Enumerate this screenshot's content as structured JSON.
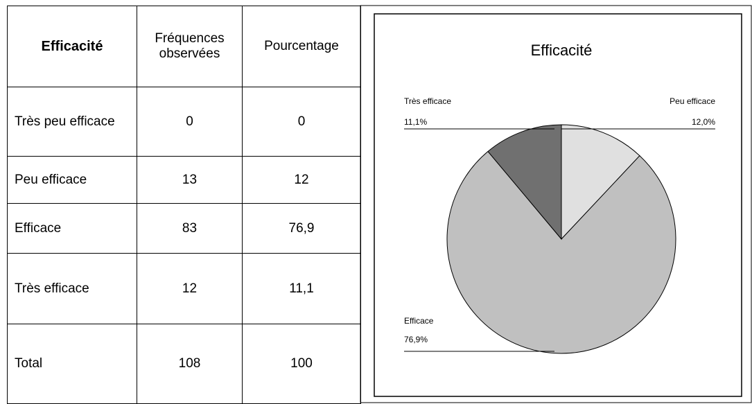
{
  "table": {
    "headers": [
      "Efficacité",
      "Fréquences observées",
      "Pourcentage"
    ],
    "rows": [
      [
        "Très peu efficace",
        "0",
        "0"
      ],
      [
        "Peu efficace",
        "13",
        "12"
      ],
      [
        "Efficace",
        "83",
        "76,9"
      ],
      [
        "Très efficace",
        "12",
        "11,1"
      ],
      [
        "Total",
        "108",
        "100"
      ]
    ]
  },
  "chart_data": {
    "type": "pie",
    "title": "Efficacité",
    "categories": [
      "Peu efficace",
      "Efficace",
      "Très efficace"
    ],
    "values": [
      12.0,
      76.9,
      11.1
    ],
    "value_labels": [
      "12,0%",
      "76,9%",
      "11,1%"
    ],
    "colors": [
      "#e0e0e0",
      "#c0c0c0",
      "#707070"
    ]
  }
}
